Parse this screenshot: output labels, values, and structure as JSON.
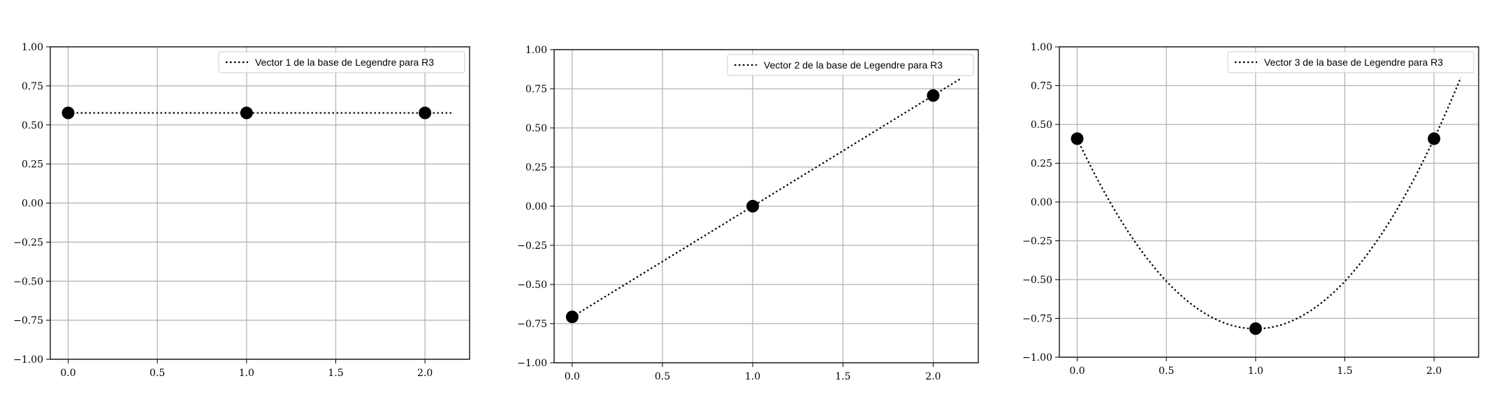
{
  "chart_data": [
    {
      "type": "line",
      "legend": "Vector 1 de la base de Legendre para R3",
      "legend_position": "top-right",
      "grid": true,
      "xlim": [
        -0.1,
        2.25
      ],
      "ylim": [
        -1.0,
        1.0
      ],
      "xticks": [
        0.0,
        0.5,
        1.0,
        1.5,
        2.0
      ],
      "xtick_labels": [
        "0.0",
        "0.5",
        "1.0",
        "1.5",
        "2.0"
      ],
      "yticks": [
        -1.0,
        -0.75,
        -0.5,
        -0.25,
        0.0,
        0.25,
        0.5,
        0.75,
        1.0
      ],
      "ytick_labels": [
        "−1.00",
        "−0.75",
        "−0.50",
        "−0.25",
        "0.00",
        "0.25",
        "0.50",
        "0.75",
        "1.00"
      ],
      "points": {
        "x": [
          0,
          1,
          2
        ],
        "y": [
          0.577,
          0.577,
          0.577
        ]
      },
      "curve": {
        "function": "constant",
        "coefficients": [
          0.577
        ],
        "x_range": [
          0.0,
          2.15
        ]
      },
      "line_style": "dotted",
      "marker_color": "#000000"
    },
    {
      "type": "line",
      "legend": "Vector 2 de la base de Legendre para R3",
      "legend_position": "top-right",
      "grid": true,
      "xlim": [
        -0.1,
        2.25
      ],
      "ylim": [
        -1.0,
        1.0
      ],
      "xticks": [
        0.0,
        0.5,
        1.0,
        1.5,
        2.0
      ],
      "xtick_labels": [
        "0.0",
        "0.5",
        "1.0",
        "1.5",
        "2.0"
      ],
      "yticks": [
        -1.0,
        -0.75,
        -0.5,
        -0.25,
        0.0,
        0.25,
        0.5,
        0.75,
        1.0
      ],
      "ytick_labels": [
        "−1.00",
        "−0.75",
        "−0.50",
        "−0.25",
        "0.00",
        "0.25",
        "0.50",
        "0.75",
        "1.00"
      ],
      "points": {
        "x": [
          0,
          1,
          2
        ],
        "y": [
          -0.707,
          0.0,
          0.707
        ]
      },
      "curve": {
        "function": "linear",
        "coefficients": [
          0.707,
          -0.707
        ],
        "x_range": [
          0.0,
          2.15
        ]
      },
      "line_style": "dotted",
      "marker_color": "#000000"
    },
    {
      "type": "line",
      "legend": "Vector 3 de la base de Legendre para R3",
      "legend_position": "top-right",
      "grid": true,
      "xlim": [
        -0.1,
        2.25
      ],
      "ylim": [
        -1.0,
        1.0
      ],
      "xticks": [
        0.0,
        0.5,
        1.0,
        1.5,
        2.0
      ],
      "xtick_labels": [
        "0.0",
        "0.5",
        "1.0",
        "1.5",
        "2.0"
      ],
      "yticks": [
        -1.0,
        -0.75,
        -0.5,
        -0.25,
        0.0,
        0.25,
        0.5,
        0.75,
        1.0
      ],
      "ytick_labels": [
        "−1.00",
        "−0.75",
        "−0.50",
        "−0.25",
        "0.00",
        "0.25",
        "0.50",
        "0.75",
        "1.00"
      ],
      "points": {
        "x": [
          0,
          1,
          2
        ],
        "y": [
          0.408,
          -0.816,
          0.408
        ]
      },
      "curve": {
        "function": "quadratic",
        "coefficients": [
          1.2247,
          -2.4495,
          0.408
        ],
        "x_range": [
          0.0,
          2.15
        ]
      },
      "line_style": "dotted",
      "marker_color": "#000000"
    }
  ]
}
